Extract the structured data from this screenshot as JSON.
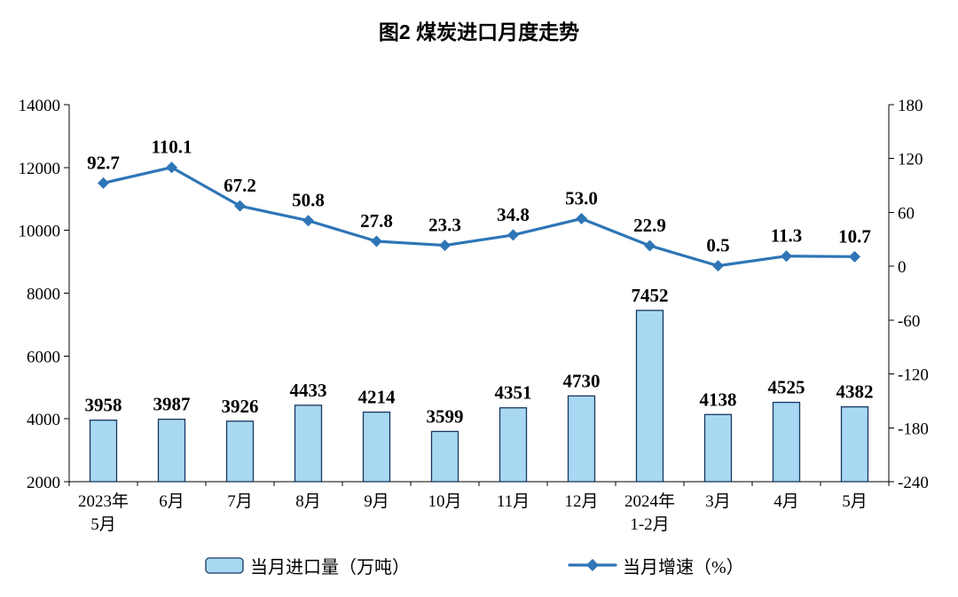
{
  "title": "图2 煤炭进口月度走势",
  "legend": {
    "bar": "当月进口量（万吨）",
    "line": "当月增速（%）"
  },
  "colors": {
    "bar_fill": "#A9D8F2",
    "bar_stroke": "#17375E",
    "line": "#2E75B6",
    "text": "#000000",
    "background": "#FFFFFF"
  },
  "chart_data": {
    "type": "bar+line",
    "title": "图2 煤炭进口月度走势",
    "categories": [
      [
        "2023年",
        "5月"
      ],
      [
        "6月"
      ],
      [
        "7月"
      ],
      [
        "8月"
      ],
      [
        "9月"
      ],
      [
        "10月"
      ],
      [
        "11月"
      ],
      [
        "12月"
      ],
      [
        "2024年",
        "1-2月"
      ],
      [
        "3月"
      ],
      [
        "4月"
      ],
      [
        "5月"
      ]
    ],
    "series": [
      {
        "name": "当月进口量（万吨）",
        "type": "bar",
        "axis": "left",
        "values": [
          3958,
          3987,
          3926,
          4433,
          4214,
          3599,
          4351,
          4730,
          7452,
          4138,
          4525,
          4382
        ]
      },
      {
        "name": "当月增速（%）",
        "type": "line",
        "axis": "right",
        "values": [
          92.7,
          110.1,
          67.2,
          50.8,
          27.8,
          23.3,
          34.8,
          53.0,
          22.9,
          0.5,
          11.3,
          10.7
        ]
      }
    ],
    "left_axis": {
      "min": 2000,
      "max": 14000,
      "step": 2000,
      "ticks": [
        2000,
        4000,
        6000,
        8000,
        10000,
        12000,
        14000
      ]
    },
    "right_axis": {
      "min": -240,
      "max": 180,
      "step": 60,
      "ticks": [
        -240,
        -180,
        -120,
        -60,
        0,
        60,
        120,
        180
      ]
    },
    "grid": false,
    "legend_position": "bottom"
  }
}
